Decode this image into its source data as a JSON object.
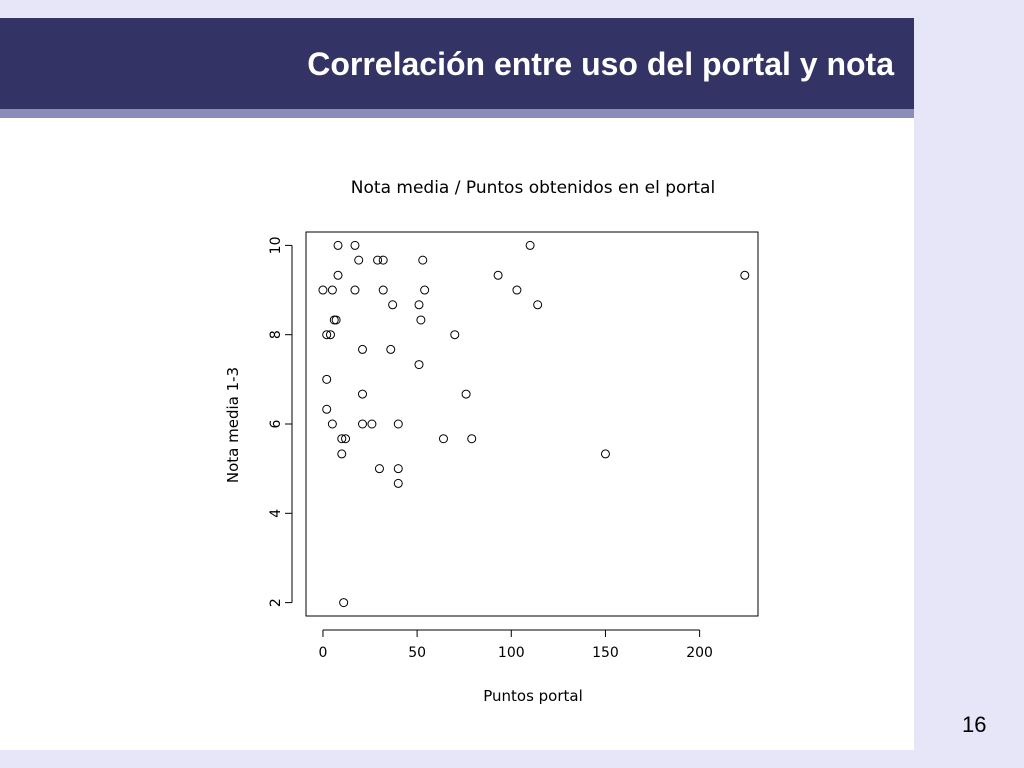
{
  "slide": {
    "title": "Correlación entre uso del portal y nota",
    "page_number": "16"
  },
  "colors": {
    "title_bar": "#333366",
    "title_underline": "#8c8cb8",
    "background": "#e6e6f8"
  },
  "chart_data": {
    "type": "scatter",
    "title": "Nota media / Puntos obtenidos en el portal",
    "xlabel": "Puntos portal",
    "ylabel": "Nota media 1-3",
    "xlim": [
      -9,
      231
    ],
    "ylim": [
      1.7,
      10.3
    ],
    "xticks": [
      0,
      50,
      100,
      150,
      200
    ],
    "yticks": [
      2,
      4,
      6,
      8,
      10
    ],
    "xtick_labels": [
      "0",
      "50",
      "100",
      "150",
      "200"
    ],
    "ytick_labels": [
      "2",
      "4",
      "6",
      "8",
      "10"
    ],
    "grid": false,
    "marker": "open-circle",
    "points": [
      [
        8,
        10
      ],
      [
        17,
        10
      ],
      [
        110,
        10
      ],
      [
        19,
        9.67
      ],
      [
        29,
        9.67
      ],
      [
        32,
        9.67
      ],
      [
        53,
        9.67
      ],
      [
        8,
        9.33
      ],
      [
        93,
        9.33
      ],
      [
        224,
        9.33
      ],
      [
        0,
        9
      ],
      [
        5,
        9
      ],
      [
        17,
        9
      ],
      [
        32,
        9
      ],
      [
        54,
        9
      ],
      [
        103,
        9
      ],
      [
        37,
        8.67
      ],
      [
        51,
        8.67
      ],
      [
        114,
        8.67
      ],
      [
        6,
        8.33
      ],
      [
        7,
        8.33
      ],
      [
        52,
        8.33
      ],
      [
        2,
        8
      ],
      [
        4,
        8
      ],
      [
        70,
        8
      ],
      [
        21,
        7.67
      ],
      [
        36,
        7.67
      ],
      [
        51,
        7.33
      ],
      [
        2,
        7
      ],
      [
        21,
        6.67
      ],
      [
        76,
        6.67
      ],
      [
        2,
        6.33
      ],
      [
        5,
        6
      ],
      [
        21,
        6
      ],
      [
        26,
        6
      ],
      [
        40,
        6
      ],
      [
        10,
        5.67
      ],
      [
        12,
        5.67
      ],
      [
        64,
        5.67
      ],
      [
        79,
        5.67
      ],
      [
        10,
        5.33
      ],
      [
        150,
        5.33
      ],
      [
        30,
        5
      ],
      [
        40,
        5
      ],
      [
        40,
        4.67
      ],
      [
        11,
        2
      ]
    ]
  }
}
